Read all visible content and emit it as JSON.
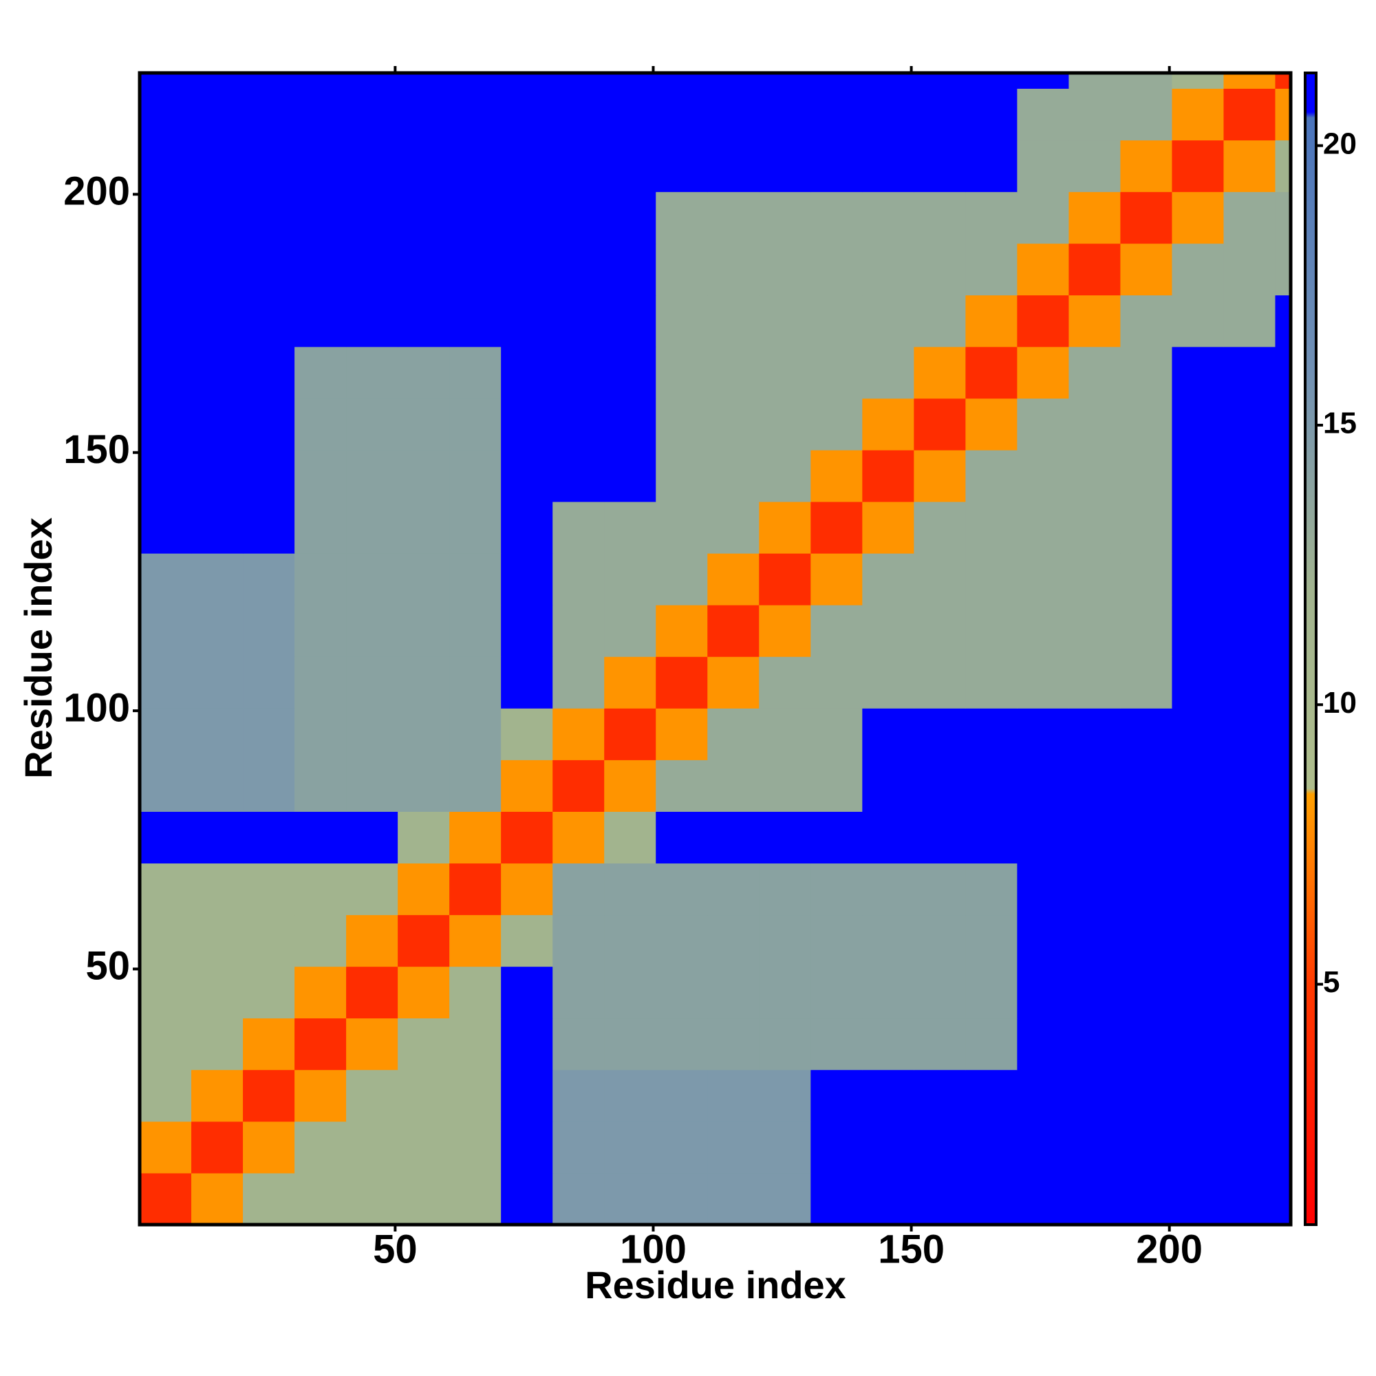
{
  "chart_data": {
    "type": "heatmap",
    "x_label": "Residue index",
    "y_label": "Residue index",
    "xlim": [
      0.5,
      223.5
    ],
    "ylim": [
      0.5,
      223.5
    ],
    "xticks": [
      50,
      100,
      150,
      200
    ],
    "yticks": [
      50,
      100,
      150,
      200
    ],
    "xbins": [
      0.5,
      10.5,
      20.5,
      30.5,
      40.5,
      50.5,
      60.5,
      70.5,
      80.5,
      90.5,
      100.5,
      110.5,
      120.5,
      130.5,
      140.5,
      150.5,
      160.5,
      170.5,
      180.5,
      190.5,
      200.5,
      210.5,
      220.5,
      223.5
    ],
    "ybins": [
      0.5,
      10.5,
      20.5,
      30.5,
      40.5,
      50.5,
      60.5,
      70.5,
      80.5,
      90.5,
      100.5,
      110.5,
      120.5,
      130.5,
      140.5,
      150.5,
      160.5,
      170.5,
      180.5,
      190.5,
      200.5,
      210.5,
      220.5,
      223.5
    ],
    "zlim": [
      0.7,
      21.3
    ],
    "zticks": [
      5,
      10,
      15,
      20
    ],
    "colorscale": [
      {
        "value": 0.7,
        "color": "#ff0000"
      },
      {
        "value": 5,
        "color": "#ff3a00"
      },
      {
        "value": 8.4,
        "color": "#ffa000"
      },
      {
        "value": 8.5,
        "color": "#aebd8c"
      },
      {
        "value": 12,
        "color": "#a2b48e"
      },
      {
        "value": 16,
        "color": "#7090b4"
      },
      {
        "value": 20.5,
        "color": "#4a74bc"
      },
      {
        "value": 20.6,
        "color": "#0000ff"
      }
    ],
    "z": [
      [
        4,
        8,
        12,
        12,
        12,
        12,
        12,
        21,
        15,
        15,
        15,
        15,
        15,
        21,
        21,
        21,
        21,
        21,
        21,
        21,
        21,
        21,
        21
      ],
      [
        8,
        4,
        8,
        12,
        12,
        12,
        12,
        21,
        15,
        15,
        15,
        15,
        15,
        21,
        21,
        21,
        21,
        21,
        21,
        21,
        21,
        21,
        21
      ],
      [
        12,
        8,
        4,
        8,
        12,
        12,
        12,
        21,
        15,
        15,
        15,
        15,
        15,
        21,
        21,
        21,
        21,
        21,
        21,
        21,
        21,
        21,
        21
      ],
      [
        12,
        12,
        8,
        4,
        8,
        12,
        12,
        21,
        14,
        14,
        14,
        14,
        14,
        14,
        14,
        14,
        14,
        21,
        21,
        21,
        21,
        21,
        21
      ],
      [
        12,
        12,
        12,
        8,
        4,
        8,
        12,
        21,
        14,
        14,
        14,
        14,
        14,
        14,
        14,
        14,
        14,
        21,
        21,
        21,
        21,
        21,
        21
      ],
      [
        12,
        12,
        12,
        12,
        8,
        4,
        8,
        12,
        14,
        14,
        14,
        14,
        14,
        14,
        14,
        14,
        14,
        21,
        21,
        21,
        21,
        21,
        21
      ],
      [
        12,
        12,
        12,
        12,
        12,
        8,
        4,
        8,
        14,
        14,
        14,
        14,
        14,
        14,
        14,
        14,
        14,
        21,
        21,
        21,
        21,
        21,
        21
      ],
      [
        21,
        21,
        21,
        21,
        21,
        12,
        8,
        4,
        8,
        12,
        21,
        21,
        21,
        21,
        21,
        21,
        21,
        21,
        21,
        21,
        21,
        21,
        21
      ],
      [
        15,
        15,
        15,
        14,
        14,
        14,
        14,
        8,
        4,
        8,
        13,
        13,
        13,
        13,
        21,
        21,
        21,
        21,
        21,
        21,
        21,
        21,
        21
      ],
      [
        15,
        15,
        15,
        14,
        14,
        14,
        14,
        12,
        8,
        4,
        8,
        13,
        13,
        13,
        21,
        21,
        21,
        21,
        21,
        21,
        21,
        21,
        21
      ],
      [
        15,
        15,
        15,
        14,
        14,
        14,
        14,
        21,
        13,
        8,
        4,
        8,
        13,
        13,
        13,
        13,
        13,
        13,
        13,
        13,
        21,
        21,
        21
      ],
      [
        15,
        15,
        15,
        14,
        14,
        14,
        14,
        21,
        13,
        13,
        8,
        4,
        8,
        13,
        13,
        13,
        13,
        13,
        13,
        13,
        21,
        21,
        21
      ],
      [
        15,
        15,
        15,
        14,
        14,
        14,
        14,
        21,
        13,
        13,
        13,
        8,
        4,
        8,
        13,
        13,
        13,
        13,
        13,
        13,
        21,
        21,
        21
      ],
      [
        21,
        21,
        21,
        14,
        14,
        14,
        14,
        21,
        13,
        13,
        13,
        13,
        8,
        4,
        8,
        13,
        13,
        13,
        13,
        13,
        21,
        21,
        21
      ],
      [
        21,
        21,
        21,
        14,
        14,
        14,
        14,
        21,
        21,
        21,
        13,
        13,
        13,
        8,
        4,
        8,
        13,
        13,
        13,
        13,
        21,
        21,
        21
      ],
      [
        21,
        21,
        21,
        14,
        14,
        14,
        14,
        21,
        21,
        21,
        13,
        13,
        13,
        13,
        8,
        4,
        8,
        13,
        13,
        13,
        21,
        21,
        21
      ],
      [
        21,
        21,
        21,
        14,
        14,
        14,
        14,
        21,
        21,
        21,
        13,
        13,
        13,
        13,
        13,
        8,
        4,
        8,
        13,
        13,
        21,
        21,
        21
      ],
      [
        21,
        21,
        21,
        21,
        21,
        21,
        21,
        21,
        21,
        21,
        13,
        13,
        13,
        13,
        13,
        13,
        8,
        4,
        8,
        13,
        13,
        13,
        21
      ],
      [
        21,
        21,
        21,
        21,
        21,
        21,
        21,
        21,
        21,
        21,
        13,
        13,
        13,
        13,
        13,
        13,
        13,
        8,
        4,
        8,
        13,
        13,
        13
      ],
      [
        21,
        21,
        21,
        21,
        21,
        21,
        21,
        21,
        21,
        21,
        13,
        13,
        13,
        13,
        13,
        13,
        13,
        13,
        8,
        4,
        8,
        13,
        13
      ],
      [
        21,
        21,
        21,
        21,
        21,
        21,
        21,
        21,
        21,
        21,
        21,
        21,
        21,
        21,
        21,
        21,
        21,
        13,
        13,
        8,
        4,
        8,
        12
      ],
      [
        21,
        21,
        21,
        21,
        21,
        21,
        21,
        21,
        21,
        21,
        21,
        21,
        21,
        21,
        21,
        21,
        21,
        13,
        13,
        13,
        8,
        4,
        8
      ],
      [
        21,
        21,
        21,
        21,
        21,
        21,
        21,
        21,
        21,
        21,
        21,
        21,
        21,
        21,
        21,
        21,
        21,
        21,
        13,
        13,
        12,
        8,
        4
      ]
    ]
  }
}
